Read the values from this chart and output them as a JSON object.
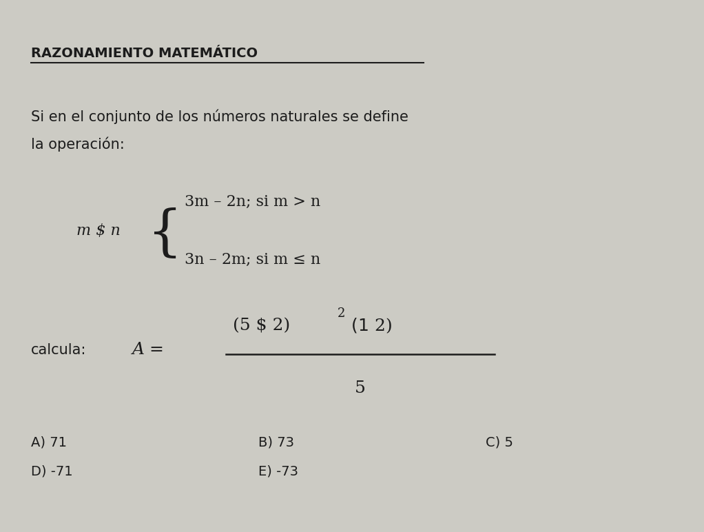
{
  "background_color": "#cccbc4",
  "title": "RAZONAMIENTO MATEMÁTICO",
  "intro_line1": "Si en el conjunto de los números naturales se define",
  "intro_line2": "la operación:",
  "case1_math": "3m – 2n; si m > n",
  "case2_math": "3n – 2m; si m ≤ n",
  "calc_text": "calcula:",
  "A_eq": "A =",
  "num_left": "(5 $ 2)",
  "superscript": "2",
  "num_right": " $ (1$ 2)",
  "denominator": "5",
  "m_dollar_n": "m $ n",
  "options_row1": [
    "A) 71",
    "B) 73",
    "C) 5"
  ],
  "options_row2": [
    "D) -71",
    "E) -73"
  ],
  "title_fontsize": 14,
  "body_fontsize": 15,
  "math_fontsize": 16,
  "option_fontsize": 14,
  "text_color": "#1c1c1c"
}
